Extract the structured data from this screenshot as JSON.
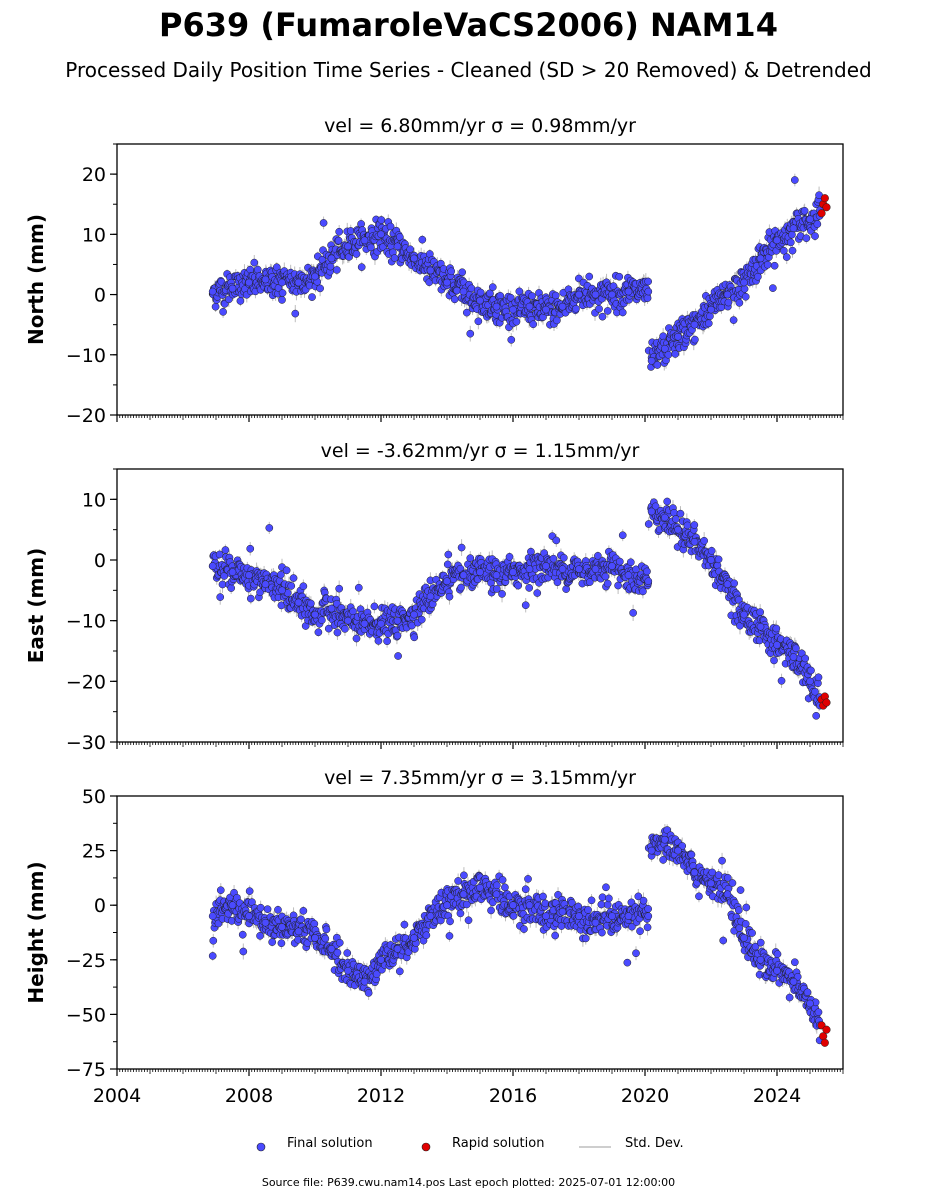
{
  "title": "P639 (FumaroleVaCS2006) NAM14",
  "subtitle": "Processed Daily Position Time Series - Cleaned (SD > 20 Removed) & Detrended",
  "footer": "Source file: P639.cwu.nam14.pos  Last epoch plotted: 2025-07-01 12:00:00",
  "legend": {
    "final": "Final solution",
    "rapid": "Rapid solution",
    "std": "Std. Dev."
  },
  "colors": {
    "final": "#4a4aff",
    "rapid": "#e00000",
    "std": "#bdbdbd",
    "edge": "#202020"
  },
  "chart_data": [
    {
      "type": "scatter",
      "title": "vel = 6.80mm/yr   σ = 0.98mm/yr",
      "ylabel": "North (mm)",
      "xlim": [
        2004,
        2026
      ],
      "ylim": [
        -20,
        25
      ],
      "yticks": [
        -20,
        -10,
        0,
        10,
        20
      ],
      "ytick_labels": [
        "−20",
        "−10",
        "0",
        "10",
        "20"
      ],
      "series": [
        {
          "name": "Final solution",
          "x": [
            2006.9,
            2007.5,
            2008.0,
            2008.5,
            2009.0,
            2009.5,
            2010.0,
            2010.5,
            2011.0,
            2011.5,
            2012.0,
            2012.5,
            2013.0,
            2013.5,
            2014.0,
            2014.5,
            2015.0,
            2015.5,
            2016.0,
            2016.5,
            2017.0,
            2017.5,
            2018.0,
            2018.5,
            2019.0,
            2019.5,
            2020.1,
            2020.2,
            2020.6,
            2021.0,
            2021.5,
            2022.0,
            2022.5,
            2023.0,
            2023.5,
            2024.0,
            2024.5,
            2025.0,
            2025.3
          ],
          "y": [
            0.5,
            1.0,
            2.0,
            2.5,
            2.0,
            2.0,
            3.0,
            6.0,
            8.0,
            9.0,
            10.0,
            8.0,
            6.0,
            4.0,
            2.0,
            0.5,
            -1.0,
            -2.0,
            -2.5,
            -2.0,
            -2.5,
            -2.0,
            0.0,
            0.0,
            0.0,
            0.5,
            0.5,
            -11.0,
            -9.0,
            -7.0,
            -5.0,
            -2.5,
            0.0,
            2.0,
            6.0,
            9.0,
            11.0,
            12.5,
            14.0
          ]
        },
        {
          "name": "Rapid solution",
          "x": [
            2025.35,
            2025.4,
            2025.45,
            2025.5
          ],
          "y": [
            13.5,
            15.0,
            16.0,
            14.5
          ]
        }
      ]
    },
    {
      "type": "scatter",
      "title": "vel = -3.62mm/yr   σ = 1.15mm/yr",
      "ylabel": "East (mm)",
      "xlim": [
        2004,
        2026
      ],
      "ylim": [
        -30,
        15
      ],
      "yticks": [
        -30,
        -20,
        -10,
        0,
        10
      ],
      "ytick_labels": [
        "−30",
        "−20",
        "−10",
        "0",
        "10"
      ],
      "series": [
        {
          "name": "Final solution",
          "x": [
            2006.9,
            2007.5,
            2008.0,
            2008.5,
            2009.0,
            2009.5,
            2010.0,
            2010.5,
            2011.0,
            2011.5,
            2012.0,
            2012.5,
            2013.0,
            2013.5,
            2014.0,
            2014.5,
            2015.0,
            2015.5,
            2016.0,
            2016.5,
            2017.0,
            2017.5,
            2018.0,
            2018.5,
            2019.0,
            2019.5,
            2020.1,
            2020.2,
            2020.6,
            2021.0,
            2021.5,
            2022.0,
            2022.5,
            2023.0,
            2023.5,
            2024.0,
            2024.5,
            2025.0,
            2025.3
          ],
          "y": [
            -1.0,
            -2.0,
            -2.5,
            -4.0,
            -5.0,
            -7.0,
            -9.0,
            -8.0,
            -10.0,
            -10.5,
            -10.5,
            -10.0,
            -9.0,
            -6.0,
            -3.5,
            -2.5,
            -2.0,
            -2.5,
            -2.0,
            -1.5,
            -1.0,
            -1.5,
            -1.5,
            -1.5,
            -1.0,
            -2.5,
            -3.5,
            8.0,
            7.0,
            5.0,
            3.0,
            0.0,
            -4.0,
            -9.0,
            -11.0,
            -14.0,
            -16.0,
            -20.0,
            -24.0
          ]
        },
        {
          "name": "Rapid solution",
          "x": [
            2025.35,
            2025.4,
            2025.45,
            2025.5
          ],
          "y": [
            -23.0,
            -24.0,
            -22.5,
            -23.5
          ]
        }
      ]
    },
    {
      "type": "scatter",
      "title": "vel = 7.35mm/yr   σ = 3.15mm/yr",
      "ylabel": "Height (mm)",
      "xlim": [
        2004,
        2026
      ],
      "ylim": [
        -75,
        50
      ],
      "yticks": [
        -75,
        -50,
        -25,
        0,
        25,
        50
      ],
      "ytick_labels": [
        "−75",
        "−50",
        "−25",
        "0",
        "25",
        "50"
      ],
      "xticks": [
        2004,
        2008,
        2012,
        2016,
        2020,
        2024
      ],
      "xtick_labels": [
        "2004",
        "2008",
        "2012",
        "2016",
        "2020",
        "2024"
      ],
      "series": [
        {
          "name": "Final solution",
          "x": [
            2006.9,
            2007.5,
            2008.0,
            2008.5,
            2009.0,
            2009.5,
            2010.0,
            2010.5,
            2011.0,
            2011.5,
            2012.0,
            2012.5,
            2013.0,
            2013.5,
            2014.0,
            2014.5,
            2015.0,
            2015.5,
            2016.0,
            2016.5,
            2017.0,
            2017.5,
            2018.0,
            2018.5,
            2019.0,
            2019.5,
            2020.1,
            2020.2,
            2020.6,
            2021.0,
            2021.5,
            2022.0,
            2022.5,
            2023.0,
            2023.5,
            2024.0,
            2024.5,
            2025.0,
            2025.3
          ],
          "y": [
            -5.0,
            0.0,
            -5.0,
            -8.0,
            -10.0,
            -12.0,
            -15.0,
            -20.0,
            -30.0,
            -35.0,
            -25.0,
            -20.0,
            -15.0,
            -5.0,
            0.0,
            5.0,
            8.0,
            5.0,
            0.0,
            0.0,
            -5.0,
            -3.0,
            -5.0,
            -8.0,
            -5.0,
            -5.0,
            -5.0,
            25.0,
            30.0,
            25.0,
            15.0,
            10.0,
            5.0,
            -15.0,
            -25.0,
            -30.0,
            -35.0,
            -45.0,
            -55.0
          ]
        },
        {
          "name": "Rapid solution",
          "x": [
            2025.35,
            2025.4,
            2025.45,
            2025.5
          ],
          "y": [
            -55.0,
            -60.0,
            -63.0,
            -57.0
          ]
        }
      ]
    }
  ]
}
